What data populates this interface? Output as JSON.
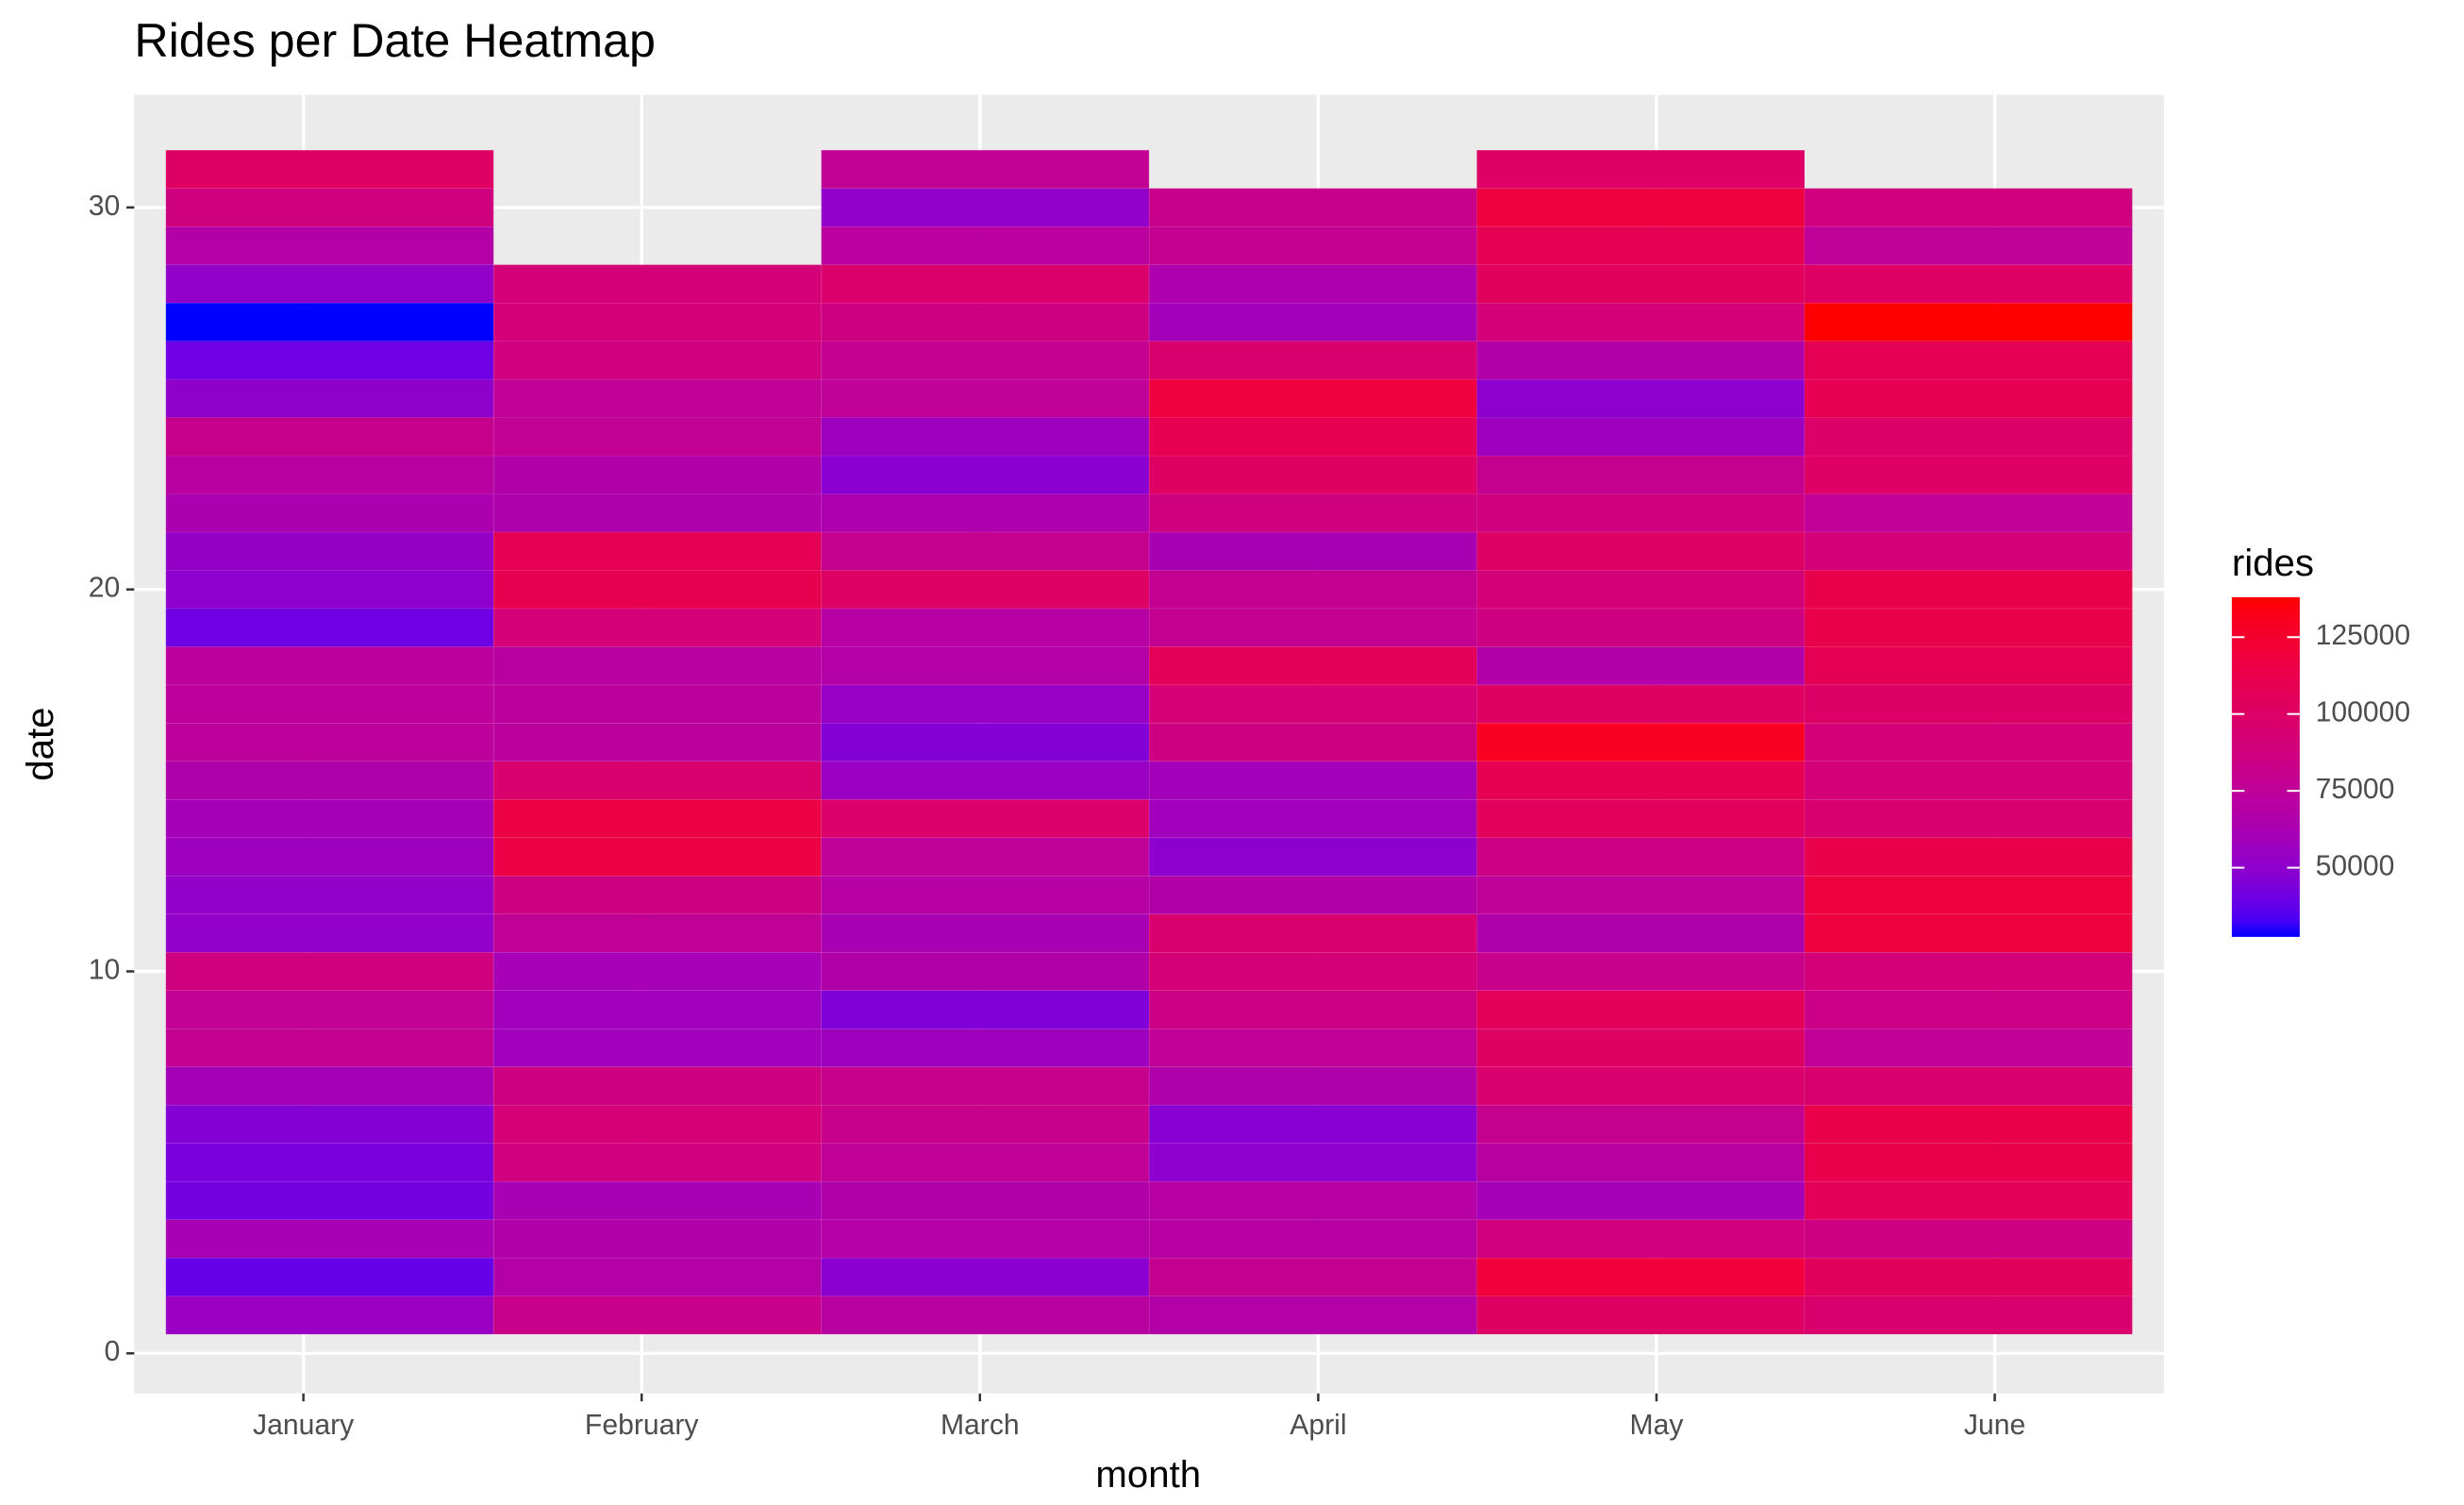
{
  "chart_data": {
    "type": "heatmap",
    "title": "Rides per Date Heatmap",
    "x_label": "month",
    "y_label": "date",
    "categories": [
      "January",
      "February",
      "March",
      "April",
      "May",
      "June"
    ],
    "y": [
      1,
      2,
      3,
      4,
      5,
      6,
      7,
      8,
      9,
      10,
      11,
      12,
      13,
      14,
      15,
      16,
      17,
      18,
      19,
      20,
      21,
      22,
      23,
      24,
      25,
      26,
      27,
      28,
      29,
      30,
      31
    ],
    "values": [
      [
        55000,
        38000,
        62000,
        42000,
        43000,
        47000,
        60000,
        78000,
        77000,
        87000,
        52000,
        52000,
        57000,
        60000,
        66000,
        74000,
        74000,
        73000,
        40000,
        50000,
        53000,
        64000,
        71000,
        81000,
        51000,
        40000,
        27500,
        52000,
        68000,
        87000,
        100000
      ],
      [
        82000,
        68000,
        67000,
        62000,
        88000,
        92000,
        86000,
        58000,
        58000,
        61000,
        76000,
        86000,
        115000,
        115000,
        96000,
        73000,
        73000,
        71000,
        91000,
        110000,
        108000,
        66000,
        67000,
        77000,
        76000,
        88000,
        90000,
        91000,
        null,
        null,
        null
      ],
      [
        71000,
        49000,
        69000,
        67000,
        76000,
        82000,
        81000,
        57000,
        45000,
        67000,
        62000,
        70000,
        75000,
        97000,
        55000,
        46000,
        54000,
        68000,
        70000,
        100000,
        80000,
        65000,
        49000,
        57000,
        75000,
        79000,
        86000,
        97000,
        72000,
        52000,
        77000
      ],
      [
        68000,
        79000,
        70000,
        70000,
        50000,
        48000,
        66000,
        76000,
        85000,
        91000,
        96000,
        67000,
        50000,
        58000,
        59000,
        86000,
        92000,
        106000,
        78000,
        78000,
        62000,
        87000,
        101000,
        109000,
        119000,
        96000,
        59000,
        65000,
        78000,
        82000,
        null
      ],
      [
        101000,
        120000,
        88000,
        60000,
        71000,
        80000,
        96000,
        101000,
        106000,
        82000,
        66000,
        75000,
        85000,
        105000,
        109000,
        130000,
        101000,
        67000,
        86000,
        91000,
        100000,
        87000,
        80000,
        57000,
        50000,
        67000,
        90000,
        104000,
        108000,
        118000,
        100000
      ],
      [
        96000,
        104000,
        86000,
        106000,
        112000,
        113000,
        95000,
        76000,
        84000,
        90000,
        118000,
        118000,
        112000,
        95000,
        91000,
        90000,
        99000,
        108000,
        112000,
        112000,
        91000,
        76000,
        100000,
        98000,
        109000,
        108000,
        138000,
        100000,
        75000,
        88000,
        null
      ]
    ],
    "ylim": [
      -1.05,
      32.95
    ],
    "yticks": [
      0,
      10,
      20,
      30
    ],
    "legend_title": "rides",
    "colorbar_ticks": [
      50000,
      75000,
      100000,
      125000
    ],
    "low_color": "#0000ff",
    "high_color": "#ff0000",
    "grid": true
  }
}
